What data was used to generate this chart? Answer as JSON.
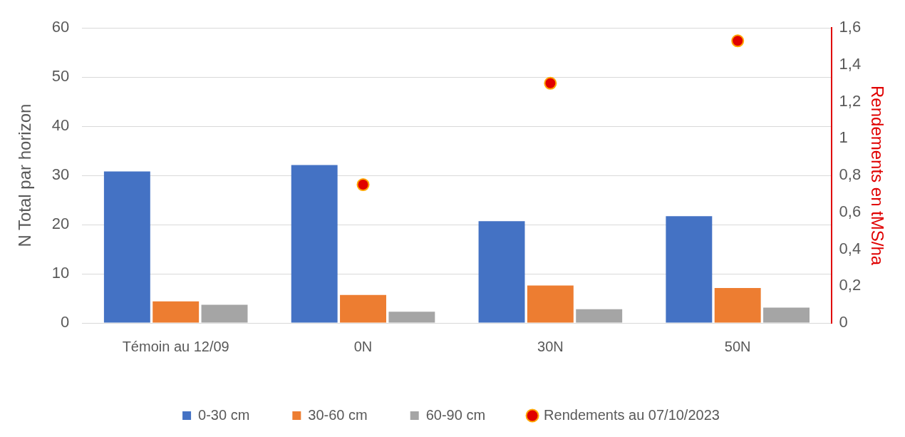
{
  "chart_data": {
    "type": "bar",
    "ylabel": "N Total par horizon",
    "y2label": "Rendements en tMS/ha",
    "categories": [
      "Témoin au 12/09",
      "0N",
      "30N",
      "50N"
    ],
    "series": [
      {
        "name": "0-30 cm",
        "color": "#4472c4",
        "values": [
          30.8,
          32.1,
          20.7,
          21.7
        ]
      },
      {
        "name": "30-60 cm",
        "color": "#ed7d31",
        "values": [
          4.4,
          5.7,
          7.6,
          7.1
        ]
      },
      {
        "name": "60-90 cm",
        "color": "#a5a5a5",
        "values": [
          3.7,
          2.3,
          2.8,
          3.1
        ]
      },
      {
        "name": "Rendements au 07/10/2023",
        "type": "scatter",
        "axis": "y2",
        "color": "#e00000",
        "x": [
          "Témoin au 12/09",
          "0N",
          "30N",
          "50N"
        ],
        "values": [
          null,
          0.75,
          1.3,
          1.53
        ]
      }
    ],
    "ylim": [
      0,
      60
    ],
    "yticks": [
      0,
      10,
      20,
      30,
      40,
      50,
      60
    ],
    "y2lim": [
      0,
      1.6
    ],
    "y2ticks": [
      0,
      {
        "value": 0.2,
        "label": "0,2"
      },
      {
        "value": 0.4,
        "label": "0,4"
      },
      {
        "value": 0.6,
        "label": "0,6"
      },
      {
        "value": 0.8,
        "label": "0,8"
      },
      1,
      {
        "value": 1.2,
        "label": "1,2"
      },
      {
        "value": 1.4,
        "label": "1,4"
      },
      {
        "value": 1.6,
        "label": "1,6"
      }
    ],
    "grid": "y",
    "legend": "bottom",
    "marker": "circle"
  }
}
